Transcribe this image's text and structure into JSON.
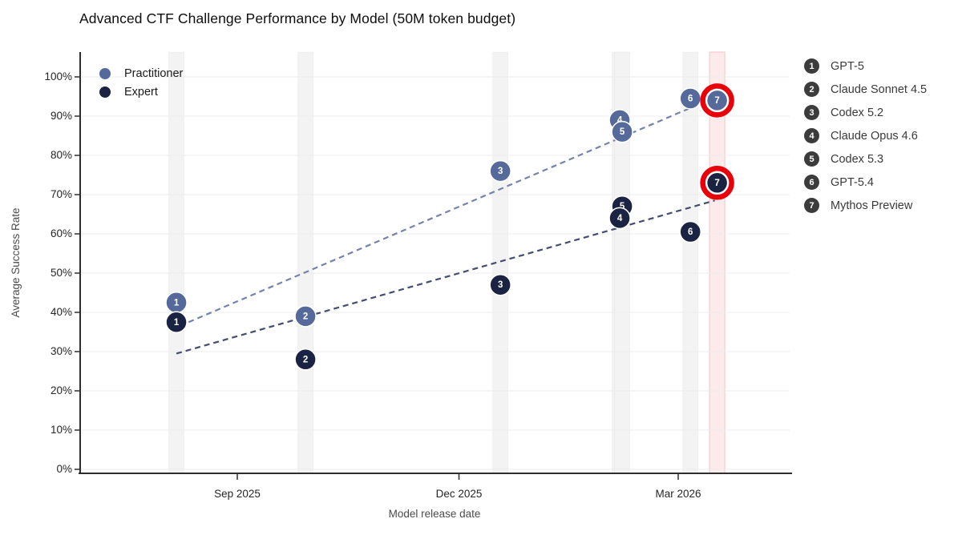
{
  "title": "Advanced CTF Challenge Performance by Model (50M token budget)",
  "series_legend": {
    "practitioner": "Practitioner",
    "expert": "Expert"
  },
  "model_legend": [
    {
      "num": "1",
      "name": "GPT-5"
    },
    {
      "num": "2",
      "name": "Claude Sonnet 4.5"
    },
    {
      "num": "3",
      "name": "Codex 5.2"
    },
    {
      "num": "4",
      "name": "Claude Opus 4.6"
    },
    {
      "num": "5",
      "name": "Codex 5.3"
    },
    {
      "num": "6",
      "name": "GPT-5.4"
    },
    {
      "num": "7",
      "name": "Mythos Preview"
    }
  ],
  "axes": {
    "x_label": "Model release date",
    "y_label": "Average Success Rate",
    "x_ticks": [
      "Sep 2025",
      "Dec 2025",
      "Mar 2026"
    ],
    "y_ticks": [
      "0%",
      "10%",
      "20%",
      "30%",
      "40%",
      "50%",
      "60%",
      "70%",
      "80%",
      "90%",
      "100%"
    ]
  },
  "chart_data": {
    "type": "scatter",
    "title": "Advanced CTF Challenge Performance by Model (50M token budget)",
    "xlabel": "Model release date",
    "ylabel": "Average Success Rate",
    "ylim": [
      0,
      100
    ],
    "y_unit": "%",
    "x_tick_dates": [
      "2025-09-01",
      "2025-12-01",
      "2026-03-01"
    ],
    "grid": "horizontal",
    "legend_position": "upper-left-inside; numbered model key outside right",
    "models": [
      {
        "num": "1",
        "name": "GPT-5",
        "release_date": "2025-08-07",
        "practitioner": 42.5,
        "expert": 37.5,
        "highlighted": false
      },
      {
        "num": "2",
        "name": "Claude Sonnet 4.5",
        "release_date": "2025-09-29",
        "practitioner": 39,
        "expert": 28,
        "highlighted": false
      },
      {
        "num": "3",
        "name": "Codex 5.2",
        "release_date": "2025-12-18",
        "practitioner": 76,
        "expert": 47,
        "highlighted": false
      },
      {
        "num": "4",
        "name": "Claude Opus 4.6",
        "release_date": "2026-02-05",
        "practitioner": 89,
        "expert": 64,
        "highlighted": false
      },
      {
        "num": "5",
        "name": "Codex 5.3",
        "release_date": "2026-02-06",
        "practitioner": 86,
        "expert": 67,
        "highlighted": false
      },
      {
        "num": "6",
        "name": "GPT-5.4",
        "release_date": "2026-03-06",
        "practitioner": 94.5,
        "expert": 60.5,
        "highlighted": false
      },
      {
        "num": "7",
        "name": "Mythos Preview",
        "release_date": "2026-03-17",
        "practitioner": 94,
        "expert": 73,
        "highlighted": true
      }
    ],
    "trend_lines": [
      {
        "series": "Practitioner",
        "style": "dashed",
        "start": {
          "date": "2025-08-12",
          "value": 37.5
        },
        "end": {
          "date": "2026-03-17",
          "value": 95
        }
      },
      {
        "series": "Expert",
        "style": "dashed",
        "start": {
          "date": "2025-08-07",
          "value": 29.5
        },
        "end": {
          "date": "2026-03-16",
          "value": 68.5
        }
      }
    ],
    "colors": {
      "practitioner": "#56699b",
      "expert": "#1b2342",
      "practitioner_trend": "#7483aa",
      "expert_trend": "#434d6e",
      "highlight_ring": "#e8000b",
      "highlight_band_fill": "#fdeaea",
      "highlight_band_edge": "#f5c4c4",
      "release_band": "#f3f3f3",
      "gridline": "#ececee",
      "spine": "#2e2e2e"
    }
  }
}
